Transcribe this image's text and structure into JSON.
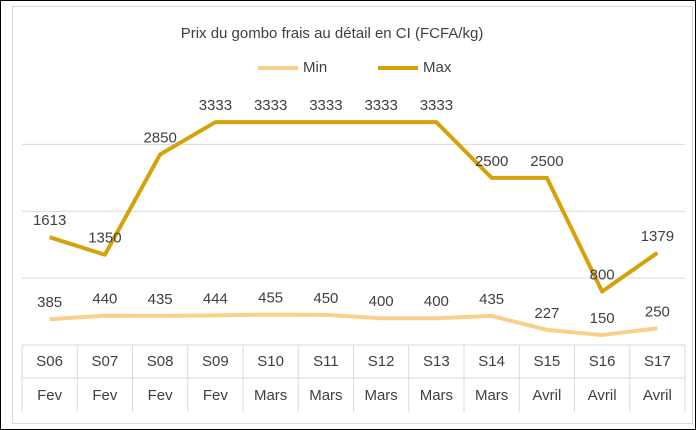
{
  "chart_data": {
    "type": "line",
    "title": "Prix du gombo frais au détail en CI (FCFA/kg)",
    "categories": [
      "S06",
      "S07",
      "S08",
      "S09",
      "S10",
      "S11",
      "S12",
      "S13",
      "S14",
      "S15",
      "S16",
      "S17"
    ],
    "category_groups": [
      "Fev",
      "Fev",
      "Fev",
      "Fev",
      "Mars",
      "Mars",
      "Mars",
      "Mars",
      "Mars",
      "Avril",
      "Avril",
      "Avril"
    ],
    "series": [
      {
        "name": "Min",
        "color": "#f9cf8c",
        "values": [
          385,
          440,
          435,
          444,
          455,
          450,
          400,
          400,
          435,
          227,
          150,
          250
        ]
      },
      {
        "name": "Max",
        "color": "#d6a20a",
        "values": [
          1613,
          1350,
          2850,
          3333,
          3333,
          3333,
          3333,
          3333,
          2500,
          2500,
          800,
          1379
        ]
      }
    ],
    "ylim": [
      0,
      3500
    ],
    "yticks": [
      0,
      1000,
      2000,
      3000
    ],
    "grid": true,
    "legend": "top"
  }
}
